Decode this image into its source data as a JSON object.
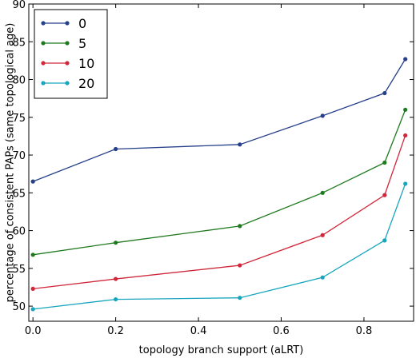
{
  "chart_data": {
    "type": "line",
    "xlabel": "topology branch support (aLRT)",
    "ylabel": "percentage of consistent PAPs (same topological age)",
    "xlim": [
      -0.01,
      0.92
    ],
    "ylim": [
      48,
      90
    ],
    "xticks": [
      0.0,
      0.2,
      0.4,
      0.6,
      0.8
    ],
    "xtick_labels": [
      "0.0",
      "0.2",
      "0.4",
      "0.6",
      "0.8"
    ],
    "yticks": [
      50,
      55,
      60,
      65,
      70,
      75,
      80,
      85,
      90
    ],
    "ytick_labels": [
      "50",
      "55",
      "60",
      "65",
      "70",
      "75",
      "80",
      "85",
      "90"
    ],
    "grid": false,
    "legend_position": "top-left",
    "x": [
      0.0,
      0.2,
      0.5,
      0.7,
      0.85,
      0.9
    ],
    "series": [
      {
        "name": "0",
        "color": "#253f8a",
        "values": [
          66.5,
          70.8,
          71.4,
          75.2,
          78.2,
          82.7
        ]
      },
      {
        "name": "5",
        "color": "#1f7a1f",
        "values": [
          56.8,
          58.4,
          60.6,
          65.0,
          69.0,
          76.0
        ]
      },
      {
        "name": "10",
        "color": "#d0283a",
        "values": [
          52.3,
          53.6,
          55.4,
          59.4,
          64.7,
          72.6
        ]
      },
      {
        "name": "20",
        "color": "#17a5bd",
        "values": [
          49.6,
          50.9,
          51.1,
          53.8,
          58.7,
          66.2
        ]
      }
    ]
  }
}
